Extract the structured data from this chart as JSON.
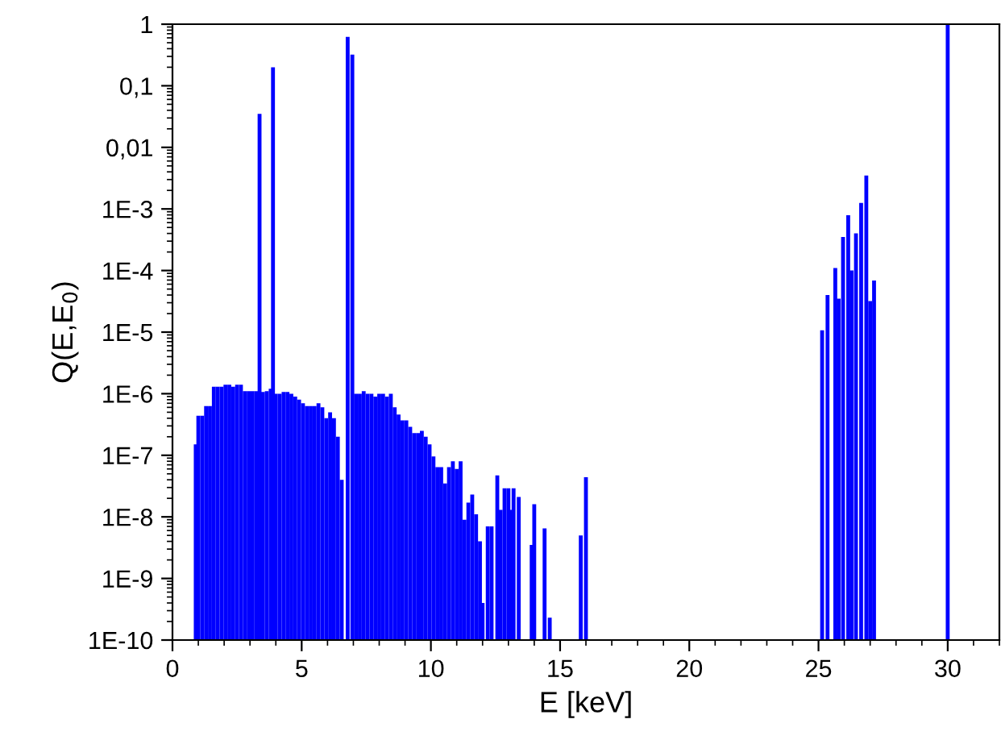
{
  "chart_data": {
    "type": "bar",
    "xlabel": "E [keV]",
    "ylabel": "Q(E,E$_{0}$)",
    "log": "y",
    "grid": false,
    "legend": false,
    "xlim": [
      0,
      32
    ],
    "xticks": [
      0,
      5,
      10,
      15,
      20,
      25,
      30
    ],
    "ylim": [
      1e-10,
      1
    ],
    "yticks": [
      {
        "value": 1e-10,
        "label": "1E-10"
      },
      {
        "value": 1e-09,
        "label": "1E-9"
      },
      {
        "value": 1e-08,
        "label": "1E-8"
      },
      {
        "value": 1e-07,
        "label": "1E-7"
      },
      {
        "value": 1e-06,
        "label": "1E-6"
      },
      {
        "value": 1e-05,
        "label": "1E-5"
      },
      {
        "value": 0.0001,
        "label": "1E-4"
      },
      {
        "value": 0.001,
        "label": "1E-3"
      },
      {
        "value": 0.01,
        "label": "0,01"
      },
      {
        "value": 0.1,
        "label": "0,1"
      },
      1
    ],
    "series": [
      {
        "color": "#0000ff",
        "x": [
          0.9,
          1.0,
          1.15,
          1.3,
          1.45,
          1.6,
          1.75,
          1.9,
          2.05,
          2.2,
          2.35,
          2.5,
          2.65,
          2.8,
          2.95,
          3.1,
          3.25,
          3.37,
          3.5,
          3.65,
          3.8,
          3.89,
          4.0,
          4.15,
          4.3,
          4.45,
          4.6,
          4.75,
          4.9,
          5.05,
          5.2,
          5.35,
          5.5,
          5.65,
          5.8,
          5.95,
          6.1,
          6.25,
          6.4,
          6.55,
          6.78,
          6.96,
          7.1,
          7.25,
          7.4,
          7.55,
          7.7,
          7.85,
          8.0,
          8.15,
          8.3,
          8.45,
          8.6,
          8.75,
          8.9,
          9.05,
          9.2,
          9.35,
          9.5,
          9.65,
          9.8,
          9.95,
          10.1,
          10.25,
          10.4,
          10.55,
          10.7,
          10.85,
          11.0,
          11.15,
          11.3,
          11.45,
          11.6,
          11.75,
          11.9,
          12.0,
          12.2,
          12.35,
          12.57,
          12.7,
          12.85,
          13.0,
          13.1,
          13.2,
          13.4,
          13.9,
          14.0,
          14.4,
          14.6,
          15.8,
          16.0,
          25.14,
          25.35,
          25.65,
          25.78,
          25.95,
          26.15,
          26.28,
          26.45,
          26.65,
          26.85,
          27.0,
          27.15,
          30.0
        ],
        "values": [
          1.5e-07,
          4.4e-07,
          4.4e-07,
          6.3e-07,
          6.3e-07,
          1.3e-06,
          1.3e-06,
          1.3e-06,
          1.4e-06,
          1.4e-06,
          1.3e-06,
          1.4e-06,
          1.4e-06,
          1.1e-06,
          1.1e-06,
          1.1e-06,
          1.1e-06,
          0.035,
          1.07e-06,
          1.1e-06,
          1.2e-06,
          0.2,
          1e-06,
          1e-06,
          1.07e-06,
          1.07e-06,
          1e-06,
          9e-07,
          8e-07,
          7e-07,
          6.3e-07,
          6.3e-07,
          6.3e-07,
          7e-07,
          6e-07,
          4e-07,
          5e-07,
          4e-07,
          2e-07,
          4e-08,
          0.62,
          0.32,
          1e-06,
          1e-06,
          1.1e-06,
          1e-06,
          1e-06,
          9e-07,
          1e-06,
          1e-06,
          9e-07,
          1e-06,
          6e-07,
          4.6e-07,
          3.7e-07,
          3.7e-07,
          2.9e-07,
          2.3e-07,
          2.3e-07,
          2.5e-07,
          2e-07,
          1.5e-07,
          9.6e-08,
          6.4e-08,
          6.4e-08,
          3.5e-08,
          6.4e-08,
          8e-08,
          6e-08,
          8e-08,
          9e-09,
          1.7e-08,
          2.3e-08,
          1.1e-08,
          4e-09,
          4e-10,
          7e-09,
          7e-09,
          4.7e-08,
          1.3e-08,
          2.9e-08,
          2.9e-08,
          1.3e-08,
          2.9e-08,
          2.1e-08,
          3.5e-09,
          1.6e-08,
          6.5e-09,
          2.3e-10,
          5e-09,
          4.4e-08,
          1.07e-05,
          4e-05,
          0.00011,
          3.5e-05,
          0.00035,
          0.00079,
          0.0001,
          0.0004,
          0.00125,
          0.0035,
          3.2e-05,
          6.9e-05,
          1
        ]
      }
    ]
  }
}
